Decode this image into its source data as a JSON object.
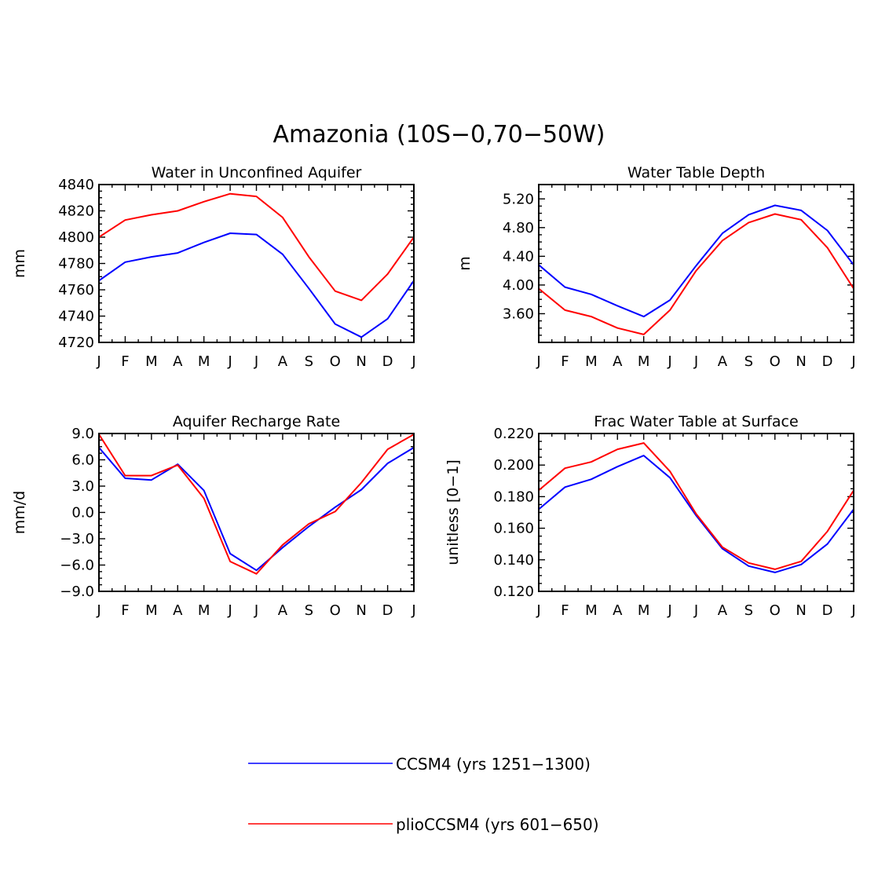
{
  "figure": {
    "title": "Amazonia (10S−0,70−50W)"
  },
  "colors": {
    "ccsm4": "#0000ff",
    "plio": "#ff0000"
  },
  "legend": [
    {
      "label": "CCSM4 (yrs 1251−1300)",
      "color": "#0000ff"
    },
    {
      "label": "plioCCSM4 (yrs 601−650)",
      "color": "#ff0000"
    }
  ],
  "chart_data": [
    {
      "type": "line",
      "title": "Water in Unconfined Aquifer",
      "ylabel": "mm",
      "categories": [
        "J",
        "F",
        "M",
        "A",
        "M",
        "J",
        "J",
        "A",
        "S",
        "O",
        "N",
        "D",
        "J"
      ],
      "ylim": [
        4720,
        4840
      ],
      "yticks": [
        4720,
        4740,
        4760,
        4780,
        4800,
        4820,
        4840
      ],
      "ytick_labels": [
        "4720",
        "4740",
        "4760",
        "4780",
        "4800",
        "4820",
        "4840"
      ],
      "series": [
        {
          "name": "CCSM4 (yrs 1251−1300)",
          "color": "#0000ff",
          "values": [
            4767,
            4781,
            4785,
            4788,
            4796,
            4803,
            4802,
            4787,
            4761,
            4734,
            4724,
            4738,
            4767
          ]
        },
        {
          "name": "plioCCSM4 (yrs 601−650)",
          "color": "#ff0000",
          "values": [
            4800,
            4813,
            4817,
            4820,
            4827,
            4833,
            4831,
            4815,
            4785,
            4759,
            4752,
            4772,
            4800
          ]
        }
      ]
    },
    {
      "type": "line",
      "title": "Water Table Depth",
      "ylabel": "m",
      "categories": [
        "J",
        "F",
        "M",
        "A",
        "M",
        "J",
        "J",
        "A",
        "S",
        "O",
        "N",
        "D",
        "J"
      ],
      "ylim": [
        3.2,
        5.4
      ],
      "yticks": [
        3.6,
        4.0,
        4.4,
        4.8,
        5.2
      ],
      "ytick_labels": [
        "3.60",
        "4.00",
        "4.40",
        "4.80",
        "5.20"
      ],
      "series": [
        {
          "name": "CCSM4 (yrs 1251−1300)",
          "color": "#0000ff",
          "values": [
            4.28,
            3.97,
            3.87,
            3.71,
            3.56,
            3.79,
            4.27,
            4.72,
            4.98,
            5.11,
            5.04,
            4.76,
            4.28
          ]
        },
        {
          "name": "plioCCSM4 (yrs 601−650)",
          "color": "#ff0000",
          "values": [
            3.95,
            3.65,
            3.56,
            3.4,
            3.31,
            3.65,
            4.2,
            4.62,
            4.87,
            4.99,
            4.91,
            4.52,
            3.95
          ]
        }
      ]
    },
    {
      "type": "line",
      "title": "Aquifer Recharge Rate",
      "ylabel": "mm/d",
      "categories": [
        "J",
        "F",
        "M",
        "A",
        "M",
        "J",
        "J",
        "A",
        "S",
        "O",
        "N",
        "D",
        "J"
      ],
      "ylim": [
        -9,
        9
      ],
      "yticks": [
        -9,
        -6,
        -3,
        0,
        3,
        6,
        9
      ],
      "ytick_labels": [
        "−9.0",
        "−6.0",
        "−3.0",
        "0.0",
        "3.0",
        "6.0",
        "9.0"
      ],
      "series": [
        {
          "name": "CCSM4 (yrs 1251−1300)",
          "color": "#0000ff",
          "values": [
            7.4,
            3.9,
            3.7,
            5.5,
            2.5,
            -4.7,
            -6.6,
            -4.0,
            -1.6,
            0.6,
            2.6,
            5.6,
            7.4
          ]
        },
        {
          "name": "plioCCSM4 (yrs 601−650)",
          "color": "#ff0000",
          "values": [
            8.9,
            4.2,
            4.2,
            5.4,
            1.6,
            -5.6,
            -7.0,
            -3.7,
            -1.3,
            0.1,
            3.4,
            7.2,
            8.9
          ]
        }
      ]
    },
    {
      "type": "line",
      "title": "Frac Water Table at Surface",
      "ylabel": "unitless [0−1]",
      "categories": [
        "J",
        "F",
        "M",
        "A",
        "M",
        "J",
        "J",
        "A",
        "S",
        "O",
        "N",
        "D",
        "J"
      ],
      "ylim": [
        0.12,
        0.22
      ],
      "yticks": [
        0.12,
        0.14,
        0.16,
        0.18,
        0.2,
        0.22
      ],
      "ytick_labels": [
        "0.120",
        "0.140",
        "0.160",
        "0.180",
        "0.200",
        "0.220"
      ],
      "series": [
        {
          "name": "CCSM4 (yrs 1251−1300)",
          "color": "#0000ff",
          "values": [
            0.172,
            0.186,
            0.191,
            0.199,
            0.206,
            0.192,
            0.168,
            0.147,
            0.136,
            0.132,
            0.137,
            0.15,
            0.172
          ]
        },
        {
          "name": "plioCCSM4 (yrs 601−650)",
          "color": "#ff0000",
          "values": [
            0.184,
            0.198,
            0.202,
            0.21,
            0.214,
            0.196,
            0.169,
            0.148,
            0.138,
            0.134,
            0.139,
            0.158,
            0.184
          ]
        }
      ]
    }
  ]
}
